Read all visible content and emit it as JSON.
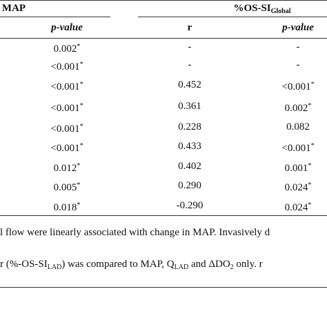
{
  "table": {
    "group_headers": [
      {
        "main": "MAP"
      },
      {
        "main": "%OS-SI",
        "sub": "Global"
      }
    ],
    "columns": [
      "p-value",
      "r",
      "p-value"
    ],
    "rows": [
      [
        {
          "value": "0.002",
          "sup": "*"
        },
        {
          "value": "-"
        },
        {
          "value": "-"
        }
      ],
      [
        {
          "value": "<0.001",
          "sup": "*"
        },
        {
          "value": "-"
        },
        {
          "value": "-"
        }
      ],
      [
        {
          "value": "<0.001",
          "sup": "*"
        },
        {
          "value": "0.452"
        },
        {
          "value": "<0.001",
          "sup": "*"
        }
      ],
      [
        {
          "value": "<0.001",
          "sup": "*"
        },
        {
          "value": "0.361"
        },
        {
          "value": "0.002",
          "sup": "*"
        }
      ],
      [
        {
          "value": "<0.001",
          "sup": "*"
        },
        {
          "value": "0.228"
        },
        {
          "value": "0.082"
        }
      ],
      [
        {
          "value": "<0.001",
          "sup": "*"
        },
        {
          "value": "0.433"
        },
        {
          "value": "<0.001",
          "sup": "*"
        }
      ],
      [
        {
          "value": "0.012",
          "sup": "*"
        },
        {
          "value": "0.402"
        },
        {
          "value": "0.001",
          "sup": "*"
        }
      ],
      [
        {
          "value": "0.005",
          "sup": "*"
        },
        {
          "value": "0.290"
        },
        {
          "value": "0.024",
          "sup": "*"
        }
      ],
      [
        {
          "value": "0.018",
          "sup": "*"
        },
        {
          "value": "-0.290"
        },
        {
          "value": "0.024",
          "sup": "*"
        }
      ]
    ]
  },
  "footnotes": [
    [
      {
        "text": "l flow were linearly associated with change in MAP. Invasively d"
      }
    ],
    [
      {
        "text": "r (%-OS-SI"
      },
      {
        "sub": "LAD"
      },
      {
        "text": ") was compared to MAP, Q"
      },
      {
        "sub": "LAD"
      },
      {
        "text": " and ΔDO"
      },
      {
        "sub": "2"
      },
      {
        "text": " only. r"
      }
    ]
  ]
}
